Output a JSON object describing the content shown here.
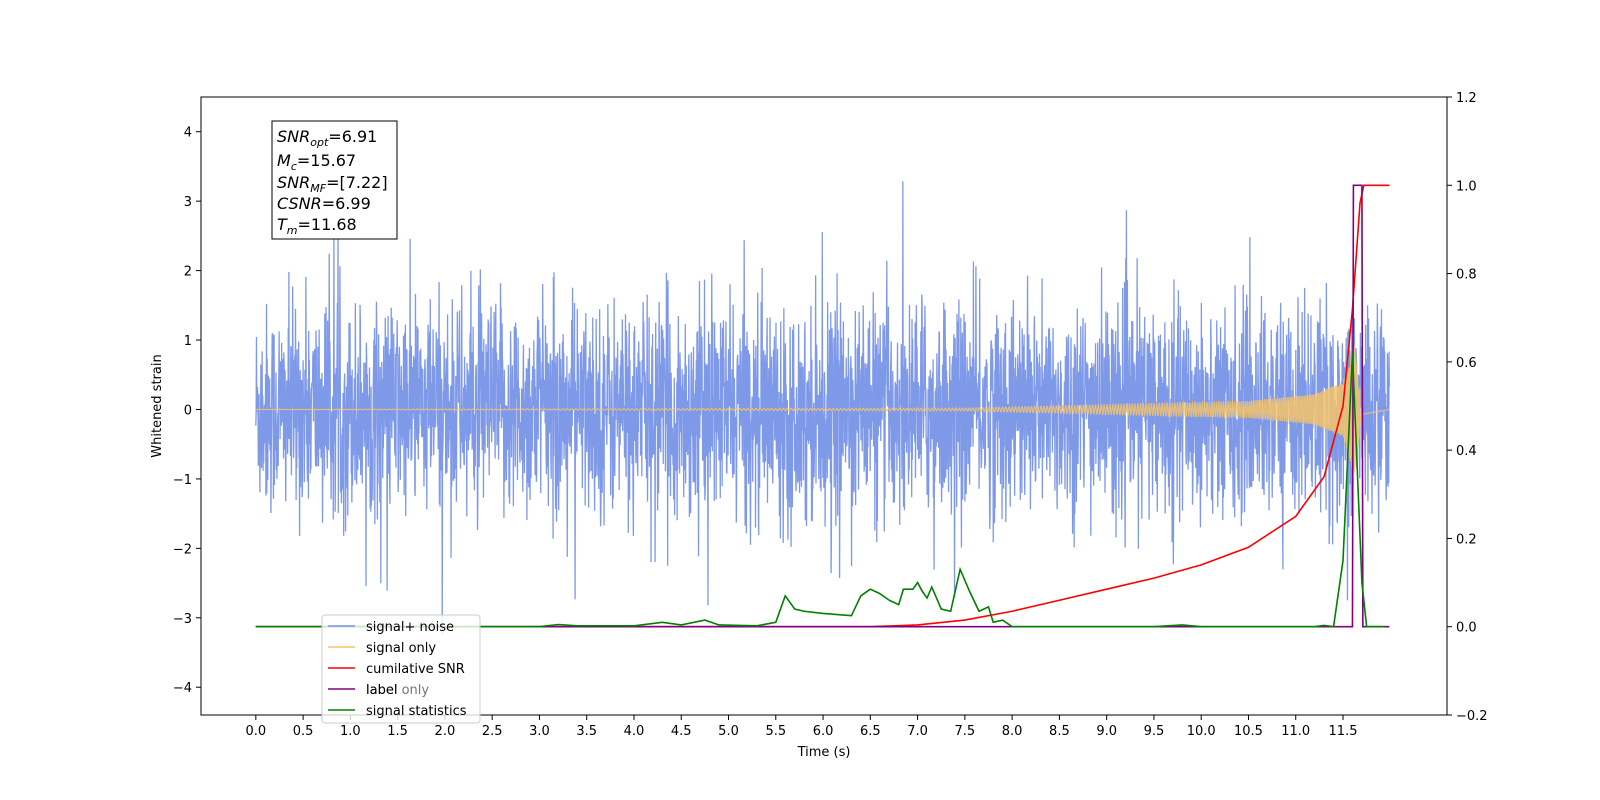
{
  "chart_data": {
    "type": "line",
    "xlabel": "Time (s)",
    "ylabel": "Whitened strain",
    "x_range": [
      -0.58,
      12.6
    ],
    "xlim": [
      0,
      11.99
    ],
    "ylim_left": [
      -4.4,
      4.5
    ],
    "ylim_right": [
      -0.2,
      1.2
    ],
    "x_ticks": [
      "0.0",
      "0.5",
      "1.0",
      "1.5",
      "2.0",
      "2.5",
      "3.0",
      "3.5",
      "4.0",
      "4.5",
      "5.0",
      "5.5",
      "6.0",
      "6.5",
      "7.0",
      "7.5",
      "8.0",
      "8.5",
      "9.0",
      "9.5",
      "10.0",
      "10.5",
      "11.0",
      "11.5"
    ],
    "y_ticks_left": [
      "−4",
      "−3",
      "−2",
      "−1",
      "0",
      "1",
      "2",
      "3",
      "4"
    ],
    "y_ticks_right": [
      "−0.2",
      "0.0",
      "0.2",
      "0.4",
      "0.6",
      "0.8",
      "1.0",
      "1.2"
    ],
    "legend_position": "lower-left",
    "info_box": {
      "snr_opt": {
        "sym": "SNR",
        "sub": "opt",
        "value": "=6.91"
      },
      "mc": {
        "sym": "M",
        "sub": "c",
        "value": "=15.67"
      },
      "snr_mf": {
        "sym": "SNR",
        "sub": "MF",
        "value": "=[7.22]"
      },
      "csnr": {
        "sym": "CSNR",
        "value": "=6.99"
      },
      "tm": {
        "sym": "T",
        "sub": "m",
        "value": "=11.68"
      }
    },
    "series": [
      {
        "name": "signal+ noise",
        "color": "#7893e8",
        "axis": "left",
        "noise_std": 0.75,
        "noise_peak_max": 4.1,
        "noise_peak_min": -3.8
      },
      {
        "name": "signal only",
        "color": "#f5c36a",
        "axis": "left",
        "envelope": [
          [
            0,
            0.0
          ],
          [
            7.5,
            0.02
          ],
          [
            9,
            0.07
          ],
          [
            10.5,
            0.12
          ],
          [
            11.2,
            0.22
          ],
          [
            11.5,
            0.4
          ],
          [
            11.62,
            0.95
          ],
          [
            11.7,
            0.1
          ],
          [
            11.99,
            0.0
          ]
        ]
      },
      {
        "name": "cumilative SNR",
        "color": "#ff0000",
        "axis": "right",
        "points": [
          [
            0,
            0
          ],
          [
            6.5,
            0
          ],
          [
            7,
            0.004
          ],
          [
            7.5,
            0.015
          ],
          [
            8,
            0.035
          ],
          [
            8.5,
            0.06
          ],
          [
            9,
            0.085
          ],
          [
            9.5,
            0.11
          ],
          [
            10,
            0.14
          ],
          [
            10.5,
            0.18
          ],
          [
            11,
            0.25
          ],
          [
            11.3,
            0.34
          ],
          [
            11.5,
            0.5
          ],
          [
            11.6,
            0.72
          ],
          [
            11.68,
            0.96
          ],
          [
            11.72,
            1.0
          ],
          [
            11.99,
            1.0
          ]
        ]
      },
      {
        "name": "label",
        "color": "#800080",
        "axis": "right",
        "points": [
          [
            0,
            0
          ],
          [
            11.6,
            0
          ],
          [
            11.61,
            1.0
          ],
          [
            11.7,
            1.0
          ],
          [
            11.71,
            0
          ],
          [
            11.99,
            0
          ]
        ]
      },
      {
        "name": "label only",
        "color": "#800080",
        "axis": "right",
        "hidden_label": true,
        "points": []
      },
      {
        "name": "signal statistics",
        "color": "#008000",
        "axis": "right",
        "points": [
          [
            0,
            0
          ],
          [
            3,
            0
          ],
          [
            3.2,
            0.005
          ],
          [
            3.4,
            0.002
          ],
          [
            4,
            0.002
          ],
          [
            4.3,
            0.01
          ],
          [
            4.5,
            0.004
          ],
          [
            4.75,
            0.015
          ],
          [
            4.9,
            0.004
          ],
          [
            5.3,
            0.002
          ],
          [
            5.5,
            0.01
          ],
          [
            5.6,
            0.07
          ],
          [
            5.7,
            0.04
          ],
          [
            5.8,
            0.035
          ],
          [
            6,
            0.03
          ],
          [
            6.3,
            0.025
          ],
          [
            6.4,
            0.07
          ],
          [
            6.5,
            0.085
          ],
          [
            6.6,
            0.075
          ],
          [
            6.7,
            0.06
          ],
          [
            6.8,
            0.05
          ],
          [
            6.85,
            0.085
          ],
          [
            6.95,
            0.085
          ],
          [
            7.0,
            0.1
          ],
          [
            7.05,
            0.08
          ],
          [
            7.1,
            0.065
          ],
          [
            7.15,
            0.09
          ],
          [
            7.25,
            0.04
          ],
          [
            7.35,
            0.035
          ],
          [
            7.45,
            0.13
          ],
          [
            7.55,
            0.08
          ],
          [
            7.65,
            0.035
          ],
          [
            7.75,
            0.045
          ],
          [
            7.8,
            0.01
          ],
          [
            7.9,
            0.015
          ],
          [
            8.0,
            0.0
          ],
          [
            9.5,
            0.0
          ],
          [
            9.8,
            0.004
          ],
          [
            10,
            0.0
          ],
          [
            11.2,
            0.0
          ],
          [
            11.3,
            0.003
          ],
          [
            11.4,
            0.0
          ],
          [
            11.5,
            0.15
          ],
          [
            11.6,
            0.62
          ],
          [
            11.7,
            0.1
          ],
          [
            11.75,
            0.0
          ],
          [
            11.94,
            0.0
          ]
        ]
      }
    ]
  }
}
